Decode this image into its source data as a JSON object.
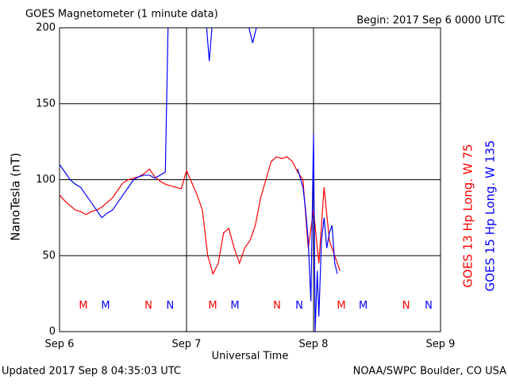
{
  "chart_data": {
    "type": "line",
    "title": "GOES Magnetometer (1 minute data)",
    "subtitle": "Begin:  2017 Sep 6 0000 UTC",
    "x_label": "Universal Time",
    "y_label": "NanoTesla (nT)",
    "footer_left": "Updated 2017 Sep  8 04:35:03 UTC",
    "footer_right": "NOAA/SWPC Boulder, CO USA",
    "xlim": [
      0,
      72
    ],
    "xticks": [
      {
        "value": 0,
        "label": "Sep 6"
      },
      {
        "value": 24,
        "label": "Sep 7"
      },
      {
        "value": 48,
        "label": "Sep 8"
      },
      {
        "value": 72,
        "label": "Sep 9"
      }
    ],
    "ylim": [
      0,
      200
    ],
    "yticks": [
      0,
      50,
      100,
      150,
      200
    ],
    "grid": true,
    "series": [
      {
        "name": "GOES 13 Hp  Long. W 75",
        "color": "#ff0000",
        "x": [
          0,
          1,
          2,
          3,
          4,
          5,
          6,
          7,
          8,
          9,
          10,
          11,
          12,
          13,
          14,
          15,
          16,
          17,
          18,
          19,
          20,
          21,
          22,
          23,
          24,
          25,
          26,
          27,
          28,
          29,
          30,
          31,
          32,
          33,
          34,
          35,
          36,
          37,
          38,
          39,
          40,
          41,
          42,
          43,
          44,
          45,
          46,
          47,
          48,
          49,
          50,
          51,
          52,
          53
        ],
        "values": [
          90,
          86,
          83,
          80,
          79,
          77,
          79,
          80,
          82,
          85,
          88,
          93,
          98,
          100,
          101,
          102,
          104,
          107,
          102,
          99,
          97,
          96,
          95,
          94,
          106,
          98,
          90,
          80,
          50,
          38,
          45,
          65,
          68,
          55,
          45,
          55,
          60,
          70,
          88,
          100,
          112,
          115,
          114,
          115,
          112,
          105,
          100,
          55,
          80,
          45,
          95,
          60,
          50,
          40
        ]
      },
      {
        "name": "GOES 15 Hp  Long. W 135",
        "color": "#0000ff",
        "x": [
          0,
          1,
          2,
          3,
          4,
          5,
          6,
          7,
          8,
          9,
          10,
          11,
          12,
          13,
          14,
          15,
          16,
          17,
          18,
          19,
          20,
          20.5,
          21,
          27.8,
          28.3,
          28.8,
          29.2,
          35.8,
          36.5,
          37.2,
          44,
          45,
          46,
          46.5,
          47,
          47.5,
          48,
          48.3,
          48.7,
          49,
          49.5,
          50,
          50.5,
          51,
          51.5,
          52,
          52.5
        ],
        "values": [
          110,
          105,
          100,
          97,
          95,
          90,
          85,
          80,
          75,
          78,
          80,
          85,
          90,
          95,
          100,
          102,
          103,
          103,
          101,
          103,
          105,
          200,
          null,
          200,
          178,
          200,
          null,
          200,
          190,
          200,
          null,
          107,
          95,
          80,
          60,
          20,
          130,
          0,
          40,
          10,
          60,
          75,
          55,
          65,
          70,
          45,
          38
        ]
      }
    ],
    "annotations": [
      {
        "text": "M",
        "x": 4.5,
        "y": 17,
        "color": "#ff0000"
      },
      {
        "text": "M",
        "x": 8.7,
        "y": 17,
        "color": "#0000ff"
      },
      {
        "text": "N",
        "x": 16.8,
        "y": 17,
        "color": "#ff0000"
      },
      {
        "text": "N",
        "x": 20.9,
        "y": 17,
        "color": "#0000ff"
      },
      {
        "text": "M",
        "x": 28.95,
        "y": 17,
        "color": "#ff0000"
      },
      {
        "text": "M",
        "x": 33.15,
        "y": 17,
        "color": "#0000ff"
      },
      {
        "text": "N",
        "x": 41.1,
        "y": 17,
        "color": "#ff0000"
      },
      {
        "text": "N",
        "x": 45.3,
        "y": 17,
        "color": "#0000ff"
      },
      {
        "text": "M",
        "x": 53.25,
        "y": 17,
        "color": "#ff0000"
      },
      {
        "text": "M",
        "x": 57.4,
        "y": 17,
        "color": "#0000ff"
      },
      {
        "text": "N",
        "x": 65.5,
        "y": 17,
        "color": "#ff0000"
      },
      {
        "text": "N",
        "x": 69.75,
        "y": 17,
        "color": "#0000ff"
      }
    ]
  }
}
